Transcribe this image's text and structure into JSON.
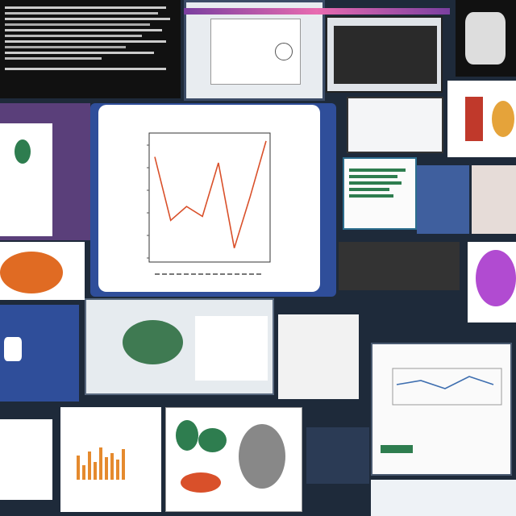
{
  "colors": {
    "background": "#1e2a3a",
    "accent_red": "#d9502a",
    "accent_green": "#2e7d4f",
    "accent_purple": "#b14bd1",
    "accent_orange": "#e58a2e",
    "panel_blue": "#2f4e9a"
  },
  "main_chart": {
    "values": [
      7.6,
      4.4,
      5.1,
      4.6,
      7.3,
      3.0,
      5.6,
      8.4
    ]
  },
  "icons": [
    "chart-icon",
    "document-icon",
    "leaf-blob-icon",
    "stone-icon"
  ]
}
